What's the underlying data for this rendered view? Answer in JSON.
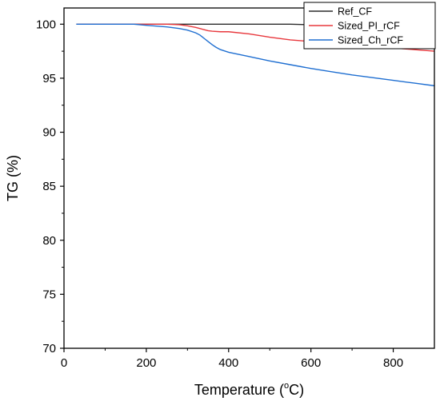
{
  "chart_data": {
    "type": "line",
    "xlabel_prefix": "Temperature (",
    "xlabel_sup": "o",
    "xlabel_suffix": "C)",
    "ylabel": "TG (%)",
    "xlim": [
      0,
      900
    ],
    "ylim": [
      70,
      101.5
    ],
    "xticks": [
      0,
      200,
      400,
      600,
      800
    ],
    "yticks": [
      70,
      75,
      80,
      85,
      90,
      95,
      100
    ],
    "grid": false,
    "legend_position": "top-right",
    "series": [
      {
        "name": "Ref_CF",
        "color": "#2b2b2b",
        "x": [
          30,
          100,
          200,
          300,
          400,
          500,
          550,
          600,
          650,
          700,
          750,
          800,
          850,
          900
        ],
        "y": [
          100,
          100,
          100,
          100,
          100,
          100,
          100,
          99.95,
          99.85,
          99.75,
          99.65,
          99.5,
          99.4,
          99.3
        ]
      },
      {
        "name": "Sized_PI_rCF",
        "color": "#e8383d",
        "x": [
          30,
          100,
          200,
          250,
          280,
          300,
          320,
          340,
          350,
          360,
          380,
          400,
          450,
          500,
          550,
          600,
          650,
          700,
          750,
          800,
          850,
          900
        ],
        "y": [
          100,
          100,
          100,
          100,
          99.95,
          99.85,
          99.7,
          99.5,
          99.4,
          99.35,
          99.3,
          99.3,
          99.1,
          98.8,
          98.55,
          98.4,
          98.25,
          98.1,
          97.95,
          97.8,
          97.65,
          97.5
        ]
      },
      {
        "name": "Sized_Ch_rCF",
        "color": "#1f6fd1",
        "x": [
          30,
          100,
          170,
          200,
          250,
          280,
          300,
          320,
          330,
          340,
          350,
          360,
          370,
          380,
          400,
          450,
          500,
          550,
          600,
          650,
          700,
          750,
          800,
          850,
          900
        ],
        "y": [
          100,
          100,
          100,
          99.9,
          99.75,
          99.6,
          99.45,
          99.2,
          99.0,
          98.7,
          98.4,
          98.1,
          97.85,
          97.65,
          97.4,
          97.0,
          96.6,
          96.25,
          95.9,
          95.6,
          95.3,
          95.05,
          94.8,
          94.55,
          94.3
        ]
      }
    ]
  }
}
